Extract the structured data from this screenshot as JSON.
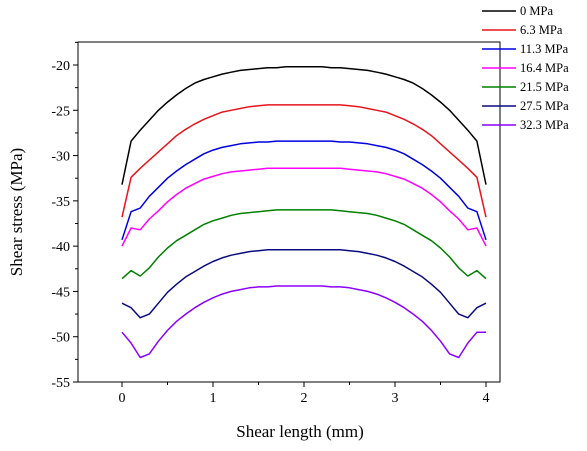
{
  "chart_data": {
    "type": "line",
    "title": "",
    "xlabel": "Shear length (mm)",
    "ylabel": "Shear stress (MPa)",
    "xlim": [
      -0.5,
      4.5
    ],
    "ylim": [
      -55,
      -17.5
    ],
    "x_ticks": [
      0,
      1,
      2,
      3,
      4
    ],
    "x_tick_labels": [
      "0",
      "1",
      "2",
      "3",
      "4"
    ],
    "y_ticks": [
      -20,
      -25,
      -30,
      -35,
      -40,
      -45,
      -50,
      -55
    ],
    "y_tick_labels": [
      "-20",
      "-25",
      "-30",
      "-35",
      "-40",
      "-45",
      "-50",
      "-55"
    ],
    "grid": false,
    "legend_position": "top-right, outside plot area",
    "x": [
      0,
      0.1,
      0.2,
      0.3,
      0.4,
      0.5,
      0.6,
      0.7,
      0.8,
      0.9,
      1.0,
      1.1,
      1.2,
      1.3,
      1.4,
      1.5,
      1.6,
      1.7,
      1.8,
      1.9,
      2.0,
      2.1,
      2.2,
      2.3,
      2.4,
      2.5,
      2.6,
      2.7,
      2.8,
      2.9,
      3.0,
      3.1,
      3.2,
      3.3,
      3.4,
      3.5,
      3.6,
      3.7,
      3.8,
      3.9,
      4.0
    ],
    "series": [
      {
        "name": "0 MPa",
        "color": "#000000",
        "values": [
          -33.2,
          -28.4,
          -27.2,
          -26.1,
          -25.0,
          -24.1,
          -23.3,
          -22.6,
          -22.0,
          -21.6,
          -21.3,
          -21.0,
          -20.8,
          -20.6,
          -20.5,
          -20.4,
          -20.3,
          -20.3,
          -20.2,
          -20.2,
          -20.2,
          -20.2,
          -20.2,
          -20.3,
          -20.3,
          -20.4,
          -20.5,
          -20.6,
          -20.8,
          -21.0,
          -21.3,
          -21.6,
          -22.0,
          -22.6,
          -23.3,
          -24.1,
          -25.0,
          -26.1,
          -27.2,
          -28.4,
          -33.2
        ]
      },
      {
        "name": "6.3 MPa",
        "color": "#e8141c",
        "values": [
          -36.8,
          -32.4,
          -31.4,
          -30.5,
          -29.6,
          -28.7,
          -27.8,
          -27.1,
          -26.5,
          -26.0,
          -25.6,
          -25.2,
          -25.0,
          -24.8,
          -24.6,
          -24.5,
          -24.4,
          -24.4,
          -24.4,
          -24.4,
          -24.4,
          -24.4,
          -24.4,
          -24.4,
          -24.4,
          -24.5,
          -24.6,
          -24.8,
          -25.0,
          -25.2,
          -25.6,
          -26.0,
          -26.5,
          -27.1,
          -27.8,
          -28.7,
          -29.6,
          -30.5,
          -31.4,
          -32.4,
          -36.8
        ]
      },
      {
        "name": "11.3 MPa",
        "color": "#0000e0",
        "values": [
          -39.3,
          -36.2,
          -35.8,
          -34.5,
          -33.5,
          -32.5,
          -31.7,
          -31.0,
          -30.4,
          -29.8,
          -29.4,
          -29.1,
          -28.9,
          -28.7,
          -28.6,
          -28.5,
          -28.5,
          -28.4,
          -28.4,
          -28.4,
          -28.4,
          -28.4,
          -28.4,
          -28.4,
          -28.5,
          -28.5,
          -28.6,
          -28.7,
          -28.9,
          -29.1,
          -29.4,
          -29.8,
          -30.4,
          -31.0,
          -31.7,
          -32.5,
          -33.5,
          -34.5,
          -35.8,
          -36.2,
          -39.3
        ]
      },
      {
        "name": "16.4 MPa",
        "color": "#ff00ff",
        "values": [
          -40.0,
          -38.0,
          -38.2,
          -37.0,
          -36.1,
          -35.1,
          -34.3,
          -33.6,
          -33.1,
          -32.6,
          -32.3,
          -32.0,
          -31.8,
          -31.7,
          -31.6,
          -31.5,
          -31.4,
          -31.4,
          -31.4,
          -31.4,
          -31.4,
          -31.4,
          -31.4,
          -31.4,
          -31.4,
          -31.5,
          -31.6,
          -31.7,
          -31.8,
          -32.0,
          -32.3,
          -32.6,
          -33.1,
          -33.6,
          -34.3,
          -35.1,
          -36.1,
          -37.0,
          -38.2,
          -38.0,
          -40.0
        ]
      },
      {
        "name": "21.5 MPa",
        "color": "#008000",
        "values": [
          -43.6,
          -42.7,
          -43.3,
          -42.4,
          -41.2,
          -40.2,
          -39.4,
          -38.8,
          -38.2,
          -37.6,
          -37.2,
          -36.9,
          -36.6,
          -36.4,
          -36.3,
          -36.2,
          -36.1,
          -36.0,
          -36.0,
          -36.0,
          -36.0,
          -36.0,
          -36.0,
          -36.0,
          -36.1,
          -36.2,
          -36.3,
          -36.4,
          -36.6,
          -36.9,
          -37.2,
          -37.6,
          -38.2,
          -38.8,
          -39.4,
          -40.2,
          -41.2,
          -42.4,
          -43.3,
          -42.7,
          -43.6
        ]
      },
      {
        "name": "27.5 MPa",
        "color": "#0a0a80",
        "values": [
          -46.3,
          -46.8,
          -47.9,
          -47.5,
          -46.3,
          -45.1,
          -44.2,
          -43.4,
          -42.8,
          -42.2,
          -41.7,
          -41.3,
          -41.0,
          -40.8,
          -40.6,
          -40.5,
          -40.4,
          -40.4,
          -40.4,
          -40.4,
          -40.4,
          -40.4,
          -40.4,
          -40.4,
          -40.4,
          -40.5,
          -40.6,
          -40.8,
          -41.0,
          -41.3,
          -41.7,
          -42.2,
          -42.8,
          -43.4,
          -44.2,
          -45.1,
          -46.3,
          -47.5,
          -47.9,
          -46.8,
          -46.3
        ]
      },
      {
        "name": "32.3 MPa",
        "color": "#8b00ff",
        "values": [
          -49.5,
          -50.7,
          -52.3,
          -51.9,
          -50.5,
          -49.3,
          -48.3,
          -47.5,
          -46.8,
          -46.2,
          -45.7,
          -45.3,
          -45.0,
          -44.8,
          -44.6,
          -44.5,
          -44.5,
          -44.4,
          -44.4,
          -44.4,
          -44.4,
          -44.4,
          -44.4,
          -44.5,
          -44.5,
          -44.6,
          -44.8,
          -45.0,
          -45.3,
          -45.7,
          -46.2,
          -46.8,
          -47.5,
          -48.3,
          -49.3,
          -50.5,
          -51.9,
          -52.3,
          -50.7,
          -49.5,
          -49.5
        ]
      }
    ]
  }
}
